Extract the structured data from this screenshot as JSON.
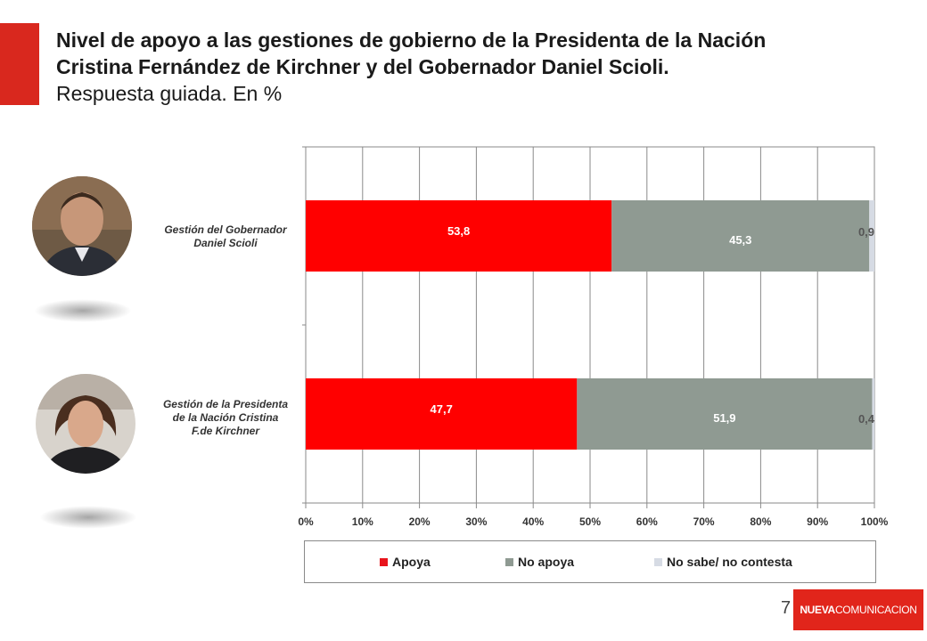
{
  "header": {
    "title_line1": "Nivel de apoyo a las gestiones de gobierno de la Presidenta de la Nación",
    "title_line2": "Cristina Fernández de Kirchner y del Gobernador Daniel Scioli.",
    "subtitle": "Respuesta guiada. En %"
  },
  "rows": [
    {
      "label_lines": [
        "Gestión del Gobernador",
        "Daniel Scioli"
      ]
    },
    {
      "label_lines": [
        "Gestión de la Presidenta",
        "de la Nación Cristina",
        "F.de Kirchner"
      ]
    }
  ],
  "chart_data": {
    "type": "bar",
    "orientation": "horizontal",
    "stacked": "percent",
    "categories": [
      "Gestión del Gobernador Daniel Scioli",
      "Gestión de la Presidenta de la Nación Cristina F.de Kirchner"
    ],
    "series": [
      {
        "name": "Apoya",
        "values": [
          53.8,
          47.7
        ],
        "labels": [
          "53,8",
          "47,7"
        ],
        "color": "#ff0000"
      },
      {
        "name": "No apoya",
        "values": [
          45.3,
          51.9
        ],
        "labels": [
          "45,3",
          "51,9"
        ],
        "color": "#8f9a92"
      },
      {
        "name": "No sabe/ no contesta",
        "values": [
          0.9,
          0.4
        ],
        "labels": [
          "0,9",
          "0,4"
        ],
        "color": "#d6dbe4"
      }
    ],
    "x_ticks": [
      "0%",
      "10%",
      "20%",
      "30%",
      "40%",
      "50%",
      "60%",
      "70%",
      "80%",
      "90%",
      "100%"
    ],
    "xlim": [
      0,
      100
    ],
    "grid": true,
    "legend_position": "bottom"
  },
  "legend": {
    "items": [
      {
        "label": "Apoya",
        "color": "#e8141c"
      },
      {
        "label": "No apoya",
        "color": "#8f9a92"
      },
      {
        "label": "No sabe/ no contesta",
        "color": "#d6dbe4"
      }
    ]
  },
  "footer": {
    "page_number": "7",
    "logo_part1": "NUEVA",
    "logo_part2": "COMUNICACION",
    "logo_color": "#e1251b"
  },
  "accent_color": "#d9281e"
}
